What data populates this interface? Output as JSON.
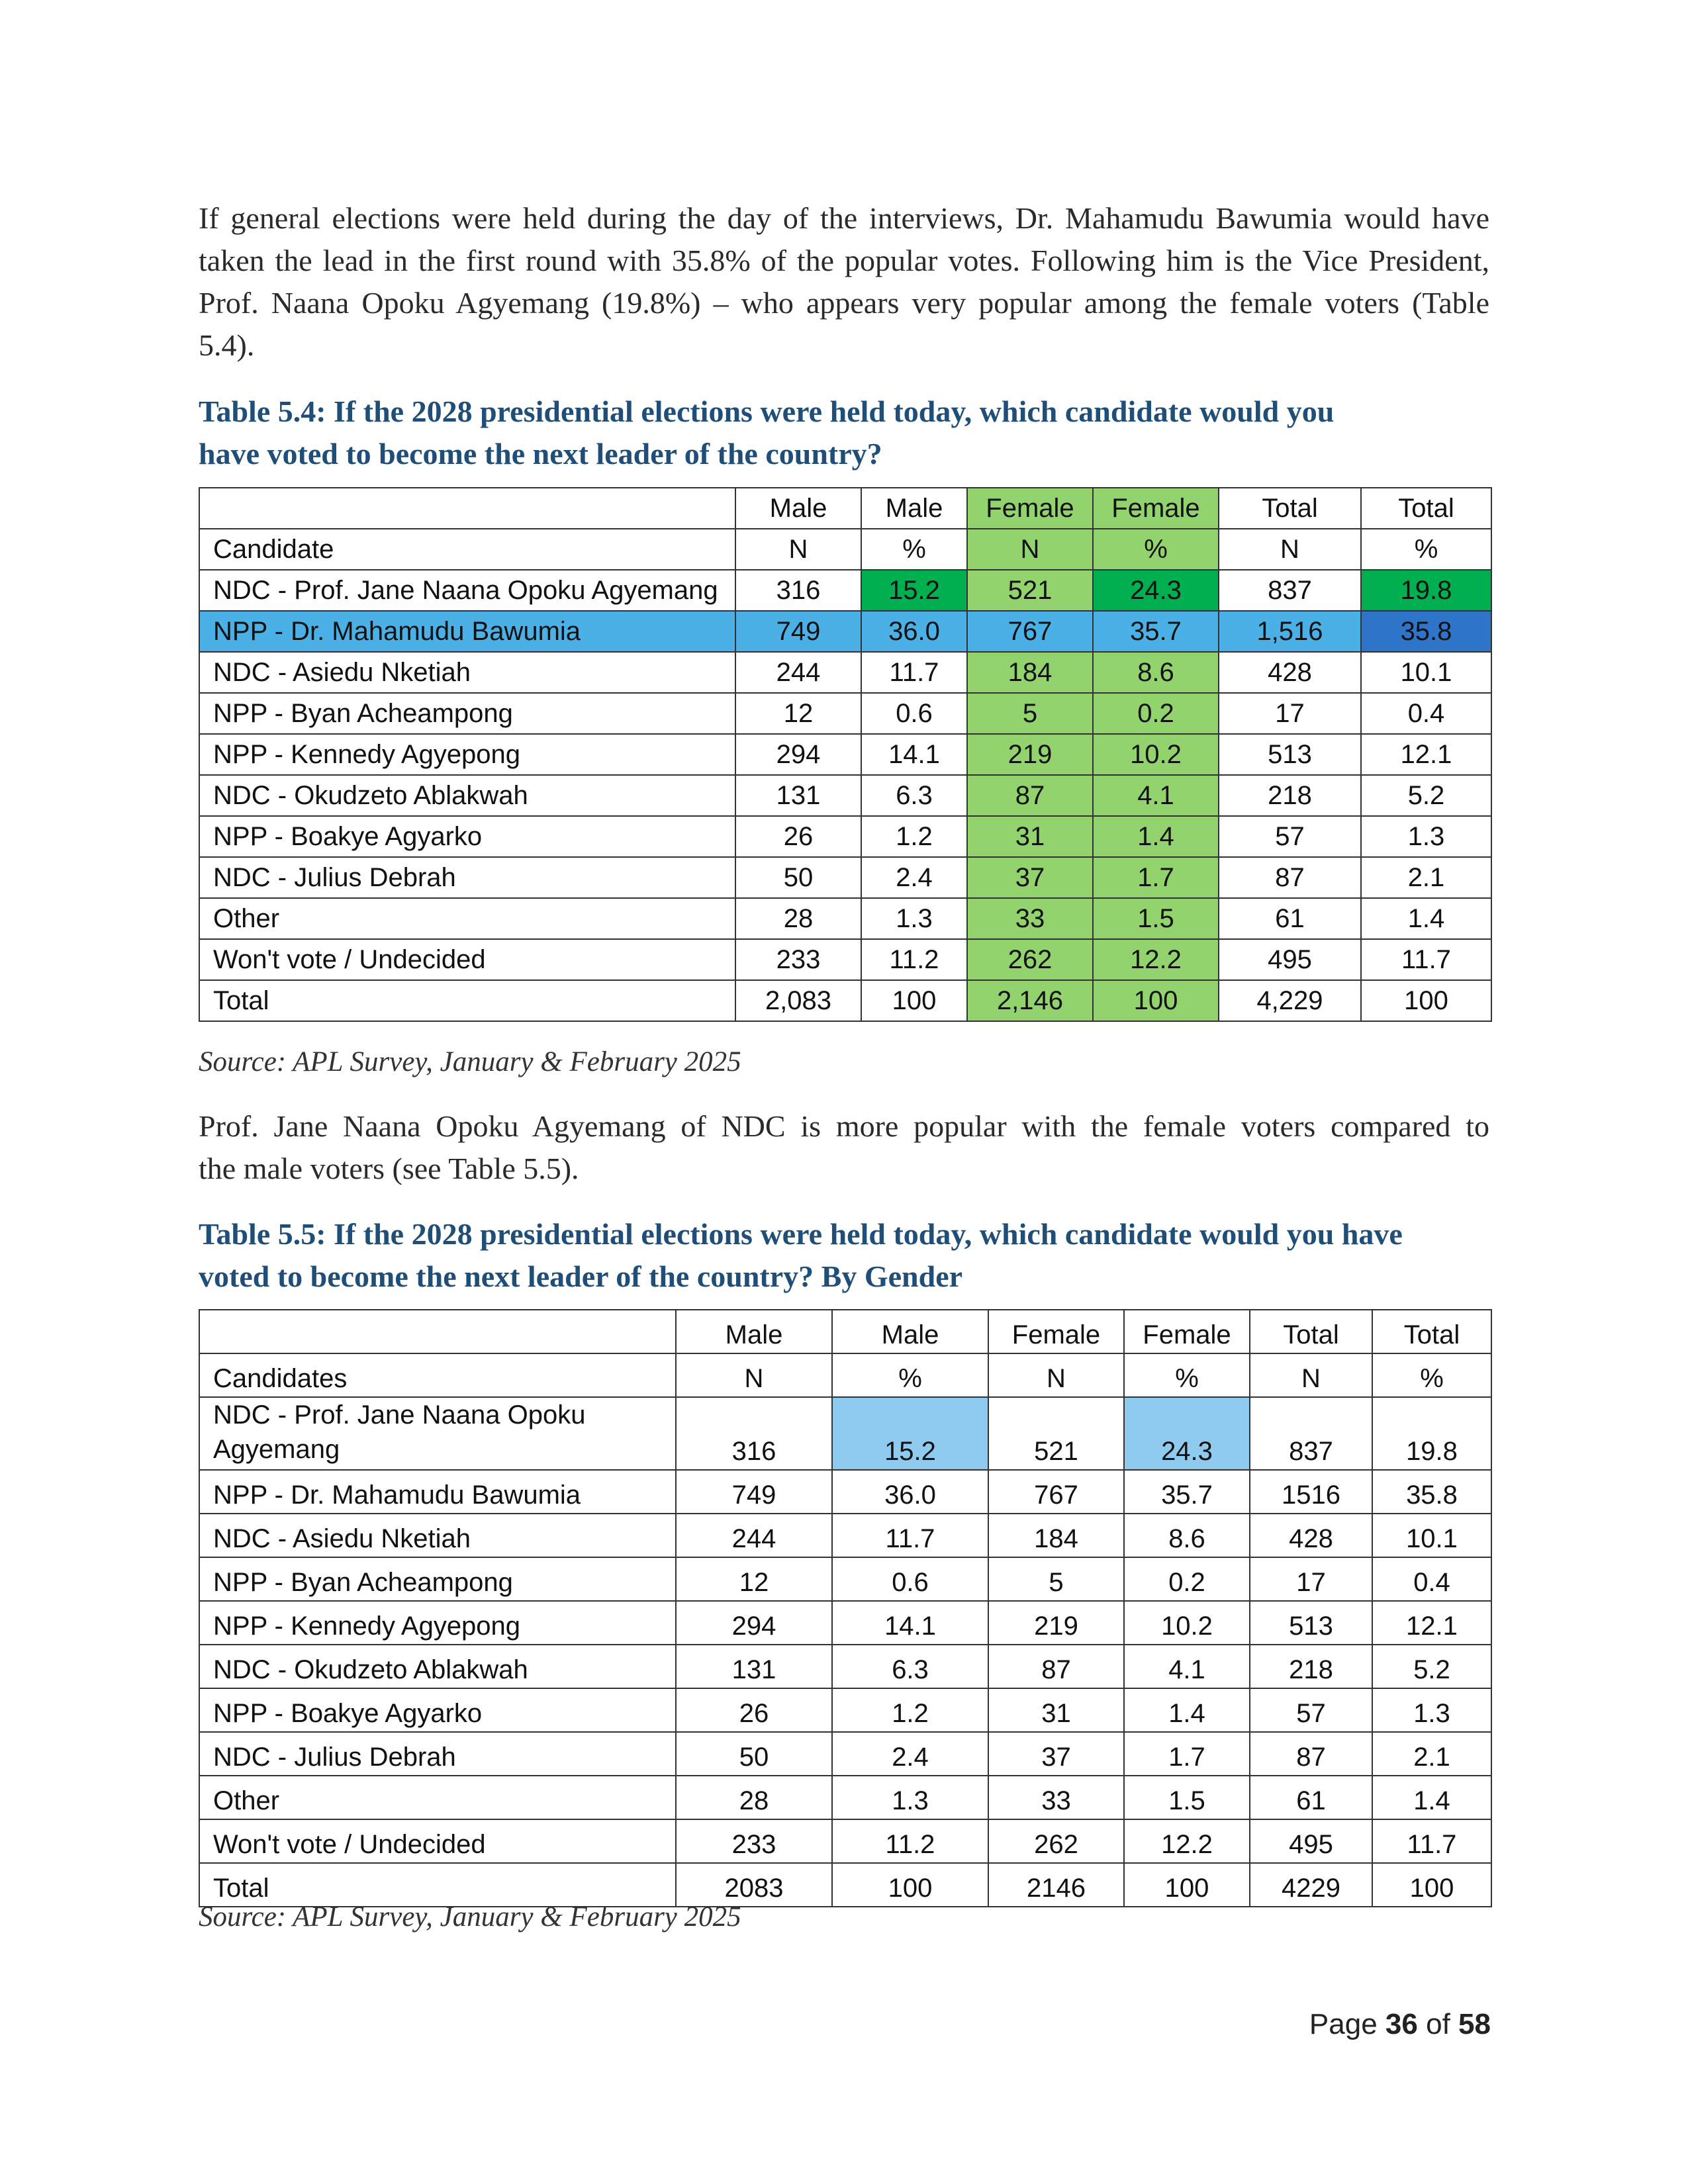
{
  "intro_paragraph": {
    "lines": [
      "If general elections were held during the day of the interviews, Dr. Mahamudu Bawumia would have",
      "taken the lead in the first round with 35.8% of the popular votes. Following him is the Vice President,",
      "Prof. Naana Opoku Agyemang (19.8%) – who appears very popular among the female voters (Table",
      "5.4)."
    ]
  },
  "table_5_4": {
    "caption_lines": [
      "Table 5.4: If the 2028 presidential elections were held today, which candidate would you",
      "have voted to become the next leader of the country?"
    ],
    "header_row1": [
      "Male",
      "Male",
      "Female",
      "Female",
      "Total",
      "Total"
    ],
    "header_row2": [
      "Candidate",
      "N",
      "%",
      "N",
      "%",
      "N",
      "%"
    ],
    "rows": [
      [
        "NDC - Prof. Jane Naana Opoku Agyemang",
        "316",
        "15.2",
        "521",
        "24.3",
        "837",
        "19.8"
      ],
      [
        "NPP - Dr. Mahamudu Bawumia",
        "749",
        "36.0",
        "767",
        "35.7",
        "1,516",
        "35.8"
      ],
      [
        "NDC - Asiedu Nketiah",
        "244",
        "11.7",
        "184",
        "8.6",
        "428",
        "10.1"
      ],
      [
        "NPP - Byan Acheampong",
        "12",
        "0.6",
        "5",
        "0.2",
        "17",
        "0.4"
      ],
      [
        "NPP - Kennedy Agyepong",
        "294",
        "14.1",
        "219",
        "10.2",
        "513",
        "12.1"
      ],
      [
        "NDC - Okudzeto Ablakwah",
        "131",
        "6.3",
        "87",
        "4.1",
        "218",
        "5.2"
      ],
      [
        "NPP - Boakye Agyarko",
        "26",
        "1.2",
        "31",
        "1.4",
        "57",
        "1.3"
      ],
      [
        "NDC - Julius Debrah",
        "50",
        "2.4",
        "37",
        "1.7",
        "87",
        "2.1"
      ],
      [
        "Other",
        "28",
        "1.3",
        "33",
        "1.5",
        "61",
        "1.4"
      ],
      [
        "Won't vote / Undecided",
        "233",
        "11.2",
        "262",
        "12.2",
        "495",
        "11.7"
      ],
      [
        "Total",
        "2,083",
        "100",
        "2,146",
        "100",
        "4,229",
        "100"
      ]
    ],
    "source": "Source: APL Survey, January & February 2025",
    "colors": {
      "light_green": "#92d36e",
      "green": "#00b050",
      "cyan": "#4ab0e6",
      "blue": "#2e75c9"
    }
  },
  "middle_paragraph": {
    "lines": [
      "Prof. Jane Naana Opoku Agyemang of NDC is more popular with the female voters compared to",
      "the male voters (see Table 5.5)."
    ]
  },
  "table_5_5": {
    "caption_lines": [
      "Table 5.5: If the 2028 presidential elections were held today, which candidate would you have",
      "voted to become the next leader of the country? By Gender"
    ],
    "header_row1": [
      "Male",
      "Male",
      "Female",
      "Female",
      "Total",
      "Total"
    ],
    "header_row2": [
      "Candidates",
      "N",
      "%",
      "N",
      "%",
      "N",
      "%"
    ],
    "first_row_label_lines": [
      "NDC - Prof. Jane Naana Opoku",
      "Agyemang"
    ],
    "first_row_values": [
      "316",
      "15.2",
      "521",
      "24.3",
      "837",
      "19.8"
    ],
    "rows": [
      [
        "NPP - Dr. Mahamudu Bawumia",
        "749",
        "36.0",
        "767",
        "35.7",
        "1516",
        "35.8"
      ],
      [
        "NDC - Asiedu Nketiah",
        "244",
        "11.7",
        "184",
        "8.6",
        "428",
        "10.1"
      ],
      [
        "NPP - Byan Acheampong",
        "12",
        "0.6",
        "5",
        "0.2",
        "17",
        "0.4"
      ],
      [
        "NPP - Kennedy Agyepong",
        "294",
        "14.1",
        "219",
        "10.2",
        "513",
        "12.1"
      ],
      [
        "NDC - Okudzeto Ablakwah",
        "131",
        "6.3",
        "87",
        "4.1",
        "218",
        "5.2"
      ],
      [
        "NPP - Boakye Agyarko",
        "26",
        "1.2",
        "31",
        "1.4",
        "57",
        "1.3"
      ],
      [
        "NDC - Julius Debrah",
        "50",
        "2.4",
        "37",
        "1.7",
        "87",
        "2.1"
      ],
      [
        "Other",
        "28",
        "1.3",
        "33",
        "1.5",
        "61",
        "1.4"
      ],
      [
        "Won't vote / Undecided",
        "233",
        "11.2",
        "262",
        "12.2",
        "495",
        "11.7"
      ],
      [
        "Total",
        "2083",
        "100",
        "2146",
        "100",
        "4229",
        "100"
      ]
    ],
    "source": "Source: APL Survey, January & February 2025",
    "colors": {
      "pale_blue": "#8fcbee"
    }
  },
  "footer": {
    "page_prefix": "Page",
    "page_number": "36",
    "page_of": "of",
    "page_total": "58"
  }
}
